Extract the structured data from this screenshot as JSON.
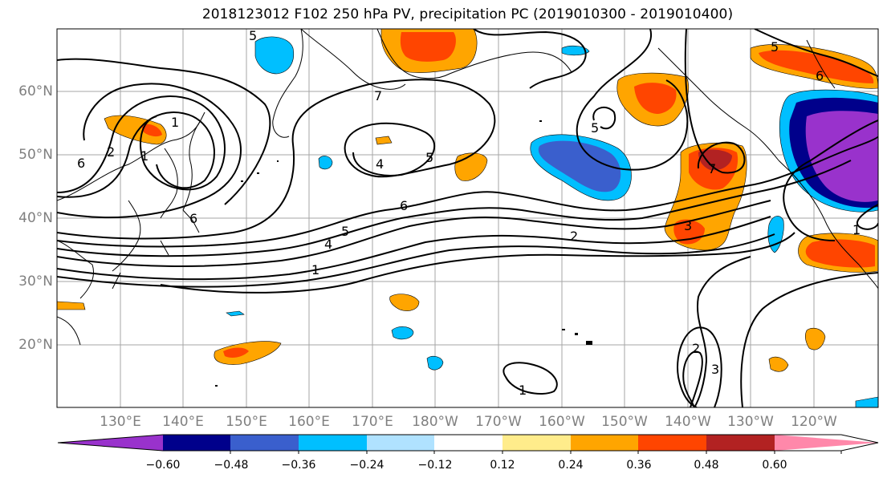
{
  "title": "2018123012 F102 250 hPa PV, precipitation PC (2019010300 - 2019010400)",
  "lat_labels": [
    "60°N",
    "50°N",
    "40°N",
    "30°N",
    "20°N"
  ],
  "lon_labels": [
    "130°E",
    "140°E",
    "150°E",
    "160°E",
    "170°E",
    "180°W",
    "170°W",
    "160°W",
    "150°W",
    "140°W",
    "130°W",
    "120°W"
  ],
  "contour_labels": [
    "6",
    "1",
    "2",
    "5",
    "7",
    "4",
    "5",
    "6",
    "4",
    "5",
    "1",
    "2",
    "3",
    "7",
    "5",
    "6",
    "1",
    "2",
    "3",
    "1",
    "1",
    "5",
    "6"
  ],
  "colorbar": {
    "colors": [
      "#9932cc",
      "#00008b",
      "#3a5fcd",
      "#00bfff",
      "#b0e2ff",
      "#ffffff",
      "#ffec8b",
      "#ffa500",
      "#ff4500",
      "#b22222",
      "#ff88aa"
    ],
    "ticks": [
      "−0.60",
      "−0.48",
      "−0.36",
      "−0.24",
      "−0.12",
      "0.12",
      "0.24",
      "0.36",
      "0.48",
      "0.60"
    ]
  },
  "fill_colors": {
    "deep_purple": "#9932cc",
    "navy": "#00008b",
    "blue": "#3a5fcd",
    "cyan": "#00bfff",
    "light_blue": "#b0e2ff",
    "yellow": "#ffec8b",
    "orange": "#ffa500",
    "red_orange": "#ff4500",
    "dark_red": "#b22222"
  }
}
